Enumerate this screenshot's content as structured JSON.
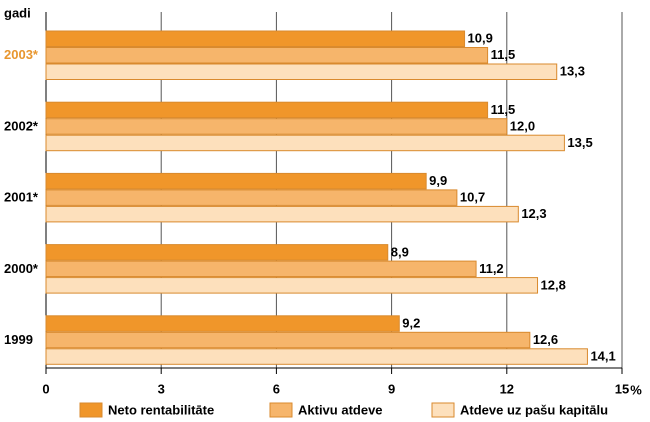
{
  "chart_data": {
    "type": "bar",
    "orientation": "horizontal",
    "y_label": "gadi",
    "x_label": "%",
    "categories": [
      "2003*",
      "2002*",
      "2001*",
      "2000*",
      "1999"
    ],
    "category_colors": [
      "#e8962e",
      "#000000",
      "#000000",
      "#000000",
      "#000000"
    ],
    "series": [
      {
        "name": "Neto rentabilitāte",
        "color": "#f0962a",
        "values": [
          10.9,
          11.5,
          9.9,
          8.9,
          9.2
        ],
        "value_labels": [
          "10,9",
          "11,5",
          "9,9",
          "8,9",
          "9,2"
        ]
      },
      {
        "name": "Aktivu atdeve",
        "color": "#f6b56b",
        "values": [
          11.5,
          12.0,
          10.7,
          11.2,
          12.6
        ],
        "value_labels": [
          "11,5",
          "12,0",
          "10,7",
          "11,2",
          "12,6"
        ]
      },
      {
        "name": "Atdeve uz pašu kapitālu",
        "color": "#fde0bc",
        "values": [
          13.3,
          13.5,
          12.3,
          12.8,
          14.1
        ],
        "value_labels": [
          "13,3",
          "13,5",
          "12,3",
          "12,8",
          "14,1"
        ]
      }
    ],
    "xlim": [
      0,
      15
    ],
    "xticks": [
      0,
      3,
      6,
      9,
      12,
      15
    ],
    "grid": true
  }
}
